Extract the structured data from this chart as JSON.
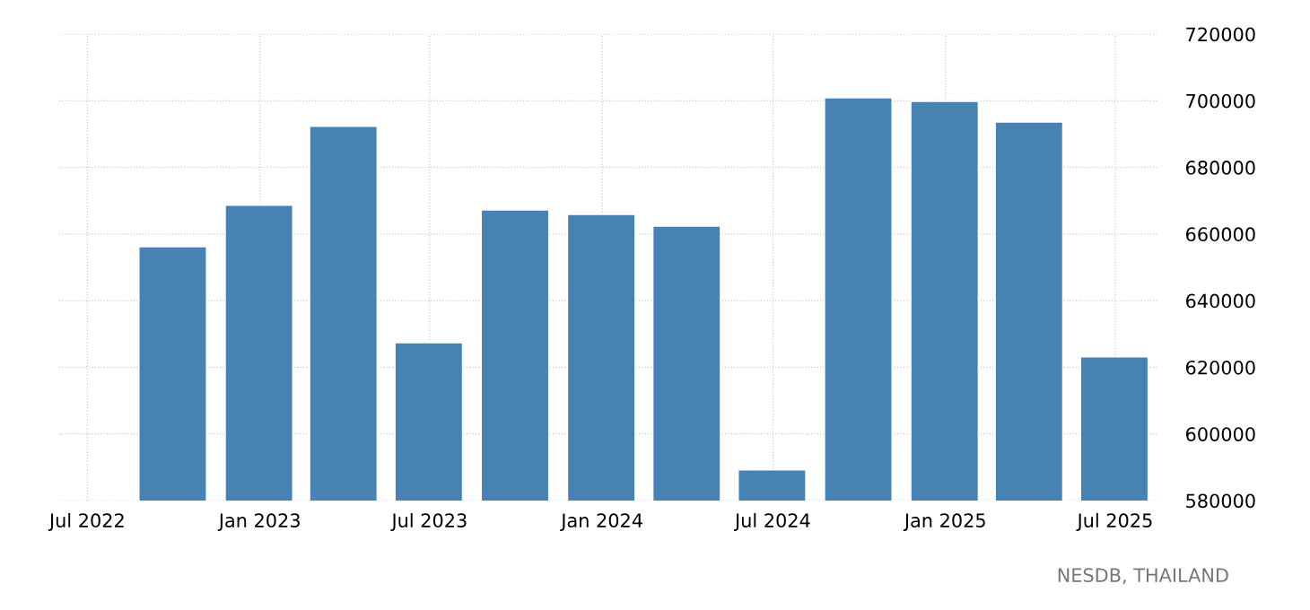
{
  "chart_data": {
    "type": "bar",
    "x": [
      "2022-09-30",
      "2022-12-31",
      "2023-03-31",
      "2023-06-30",
      "2023-09-30",
      "2023-12-31",
      "2024-03-31",
      "2024-06-30",
      "2024-09-30",
      "2024-12-31",
      "2025-03-31",
      "2025-06-30"
    ],
    "values": [
      656200,
      668600,
      692300,
      627400,
      667200,
      665900,
      662400,
      589200,
      700900,
      699800,
      693600,
      623100
    ],
    "color": "#4682b4",
    "xlim": [
      "2022-06-01",
      "2025-08-15"
    ],
    "xticks": [
      {
        "value": "2022-07-01",
        "label": "Jul 2022"
      },
      {
        "value": "2023-01-01",
        "label": "Jan 2023"
      },
      {
        "value": "2023-07-01",
        "label": "Jul 2023"
      },
      {
        "value": "2024-01-01",
        "label": "Jan 2024"
      },
      {
        "value": "2024-07-01",
        "label": "Jul 2024"
      },
      {
        "value": "2025-01-01",
        "label": "Jan 2025"
      },
      {
        "value": "2025-07-01",
        "label": "Jul 2025"
      }
    ],
    "ylim": [
      580000,
      720000
    ],
    "yticks": [
      580000,
      600000,
      620000,
      640000,
      660000,
      680000,
      700000,
      720000
    ],
    "grid": true,
    "annotations": [
      "NESDB, THAILAND"
    ]
  }
}
